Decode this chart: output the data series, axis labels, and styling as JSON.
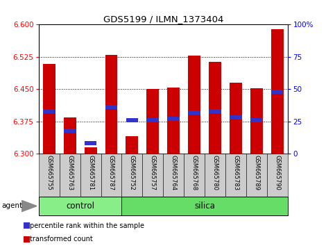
{
  "title": "GDS5199 / ILMN_1373404",
  "samples": [
    "GSM665755",
    "GSM665763",
    "GSM665781",
    "GSM665787",
    "GSM665752",
    "GSM665757",
    "GSM665764",
    "GSM665768",
    "GSM665780",
    "GSM665783",
    "GSM665789",
    "GSM665790"
  ],
  "transformed_count": [
    6.508,
    6.385,
    6.315,
    6.53,
    6.34,
    6.45,
    6.453,
    6.528,
    6.513,
    6.465,
    6.452,
    6.59
  ],
  "percentile_rank": [
    33,
    18,
    8,
    36,
    26,
    26,
    27,
    32,
    33,
    28,
    26,
    48
  ],
  "ymin": 6.3,
  "ymax": 6.6,
  "bar_color": "#cc0000",
  "blue_color": "#3333cc",
  "agent_label": "agent",
  "legend_items": [
    {
      "label": "transformed count",
      "color": "#cc0000"
    },
    {
      "label": "percentile rank within the sample",
      "color": "#3333cc"
    }
  ],
  "yticks": [
    6.3,
    6.375,
    6.45,
    6.525,
    6.6
  ],
  "ytick_right": [
    0,
    25,
    50,
    75,
    100
  ],
  "groups_info": [
    {
      "label": "control",
      "start": 0,
      "end": 4,
      "color": "#88ee88"
    },
    {
      "label": "silica",
      "start": 4,
      "end": 12,
      "color": "#66dd66"
    }
  ],
  "control_color": "#bbeecc",
  "silica_color": "#88ee88"
}
